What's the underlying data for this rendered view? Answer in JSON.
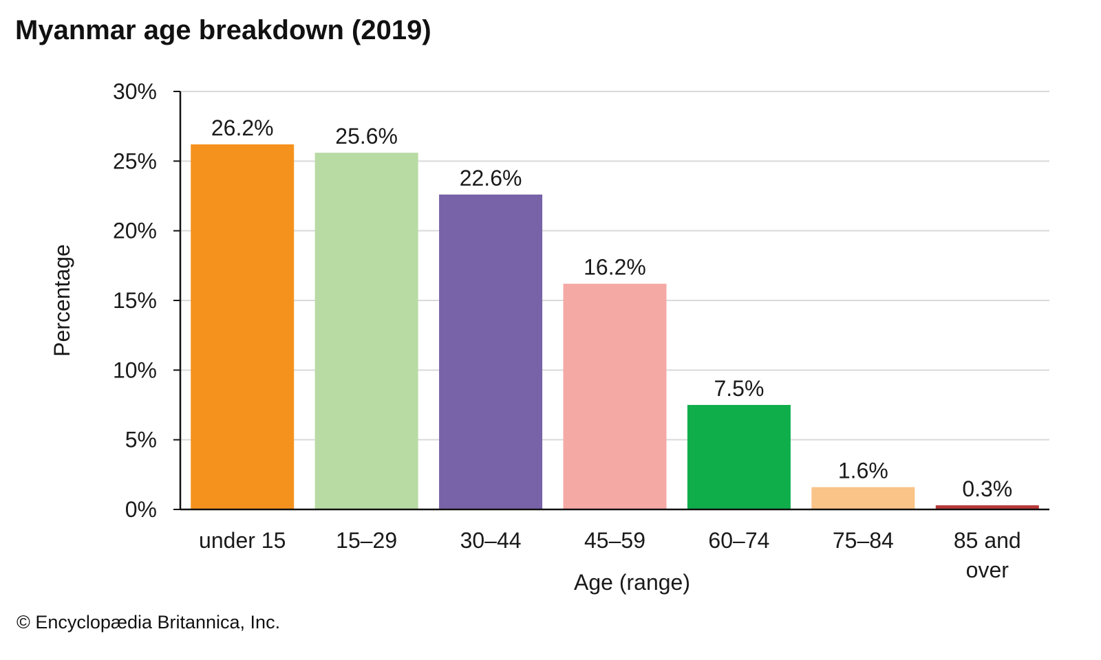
{
  "chart_data": {
    "type": "bar",
    "title": "Myanmar age breakdown (2019)",
    "xlabel": "Age (range)",
    "ylabel": "Percentage",
    "categories": [
      "under 15",
      "15–29",
      "30–44",
      "45–59",
      "60–74",
      "75–84",
      "85 and over"
    ],
    "category_lines": [
      [
        "under 15"
      ],
      [
        "15–29"
      ],
      [
        "30–44"
      ],
      [
        "45–59"
      ],
      [
        "60–74"
      ],
      [
        "75–84"
      ],
      [
        "85 and",
        "over"
      ]
    ],
    "values": [
      26.2,
      25.6,
      22.6,
      16.2,
      7.5,
      1.6,
      0.3
    ],
    "data_labels": [
      "26.2%",
      "25.6%",
      "22.6%",
      "16.2%",
      "7.5%",
      "1.6%",
      "0.3%"
    ],
    "colors": [
      "#f5921e",
      "#b8dba4",
      "#7862a8",
      "#f5a9a5",
      "#0fae4b",
      "#fac387",
      "#b8393a"
    ],
    "ylim": [
      0,
      30
    ],
    "yticks": [
      0,
      5,
      10,
      15,
      20,
      25,
      30
    ],
    "ytick_labels": [
      "0%",
      "5%",
      "10%",
      "15%",
      "20%",
      "25%",
      "30%"
    ],
    "grid": true,
    "gridline_color": "#d9d9d9"
  },
  "footer": {
    "credit": "© Encyclopædia Britannica, Inc."
  }
}
